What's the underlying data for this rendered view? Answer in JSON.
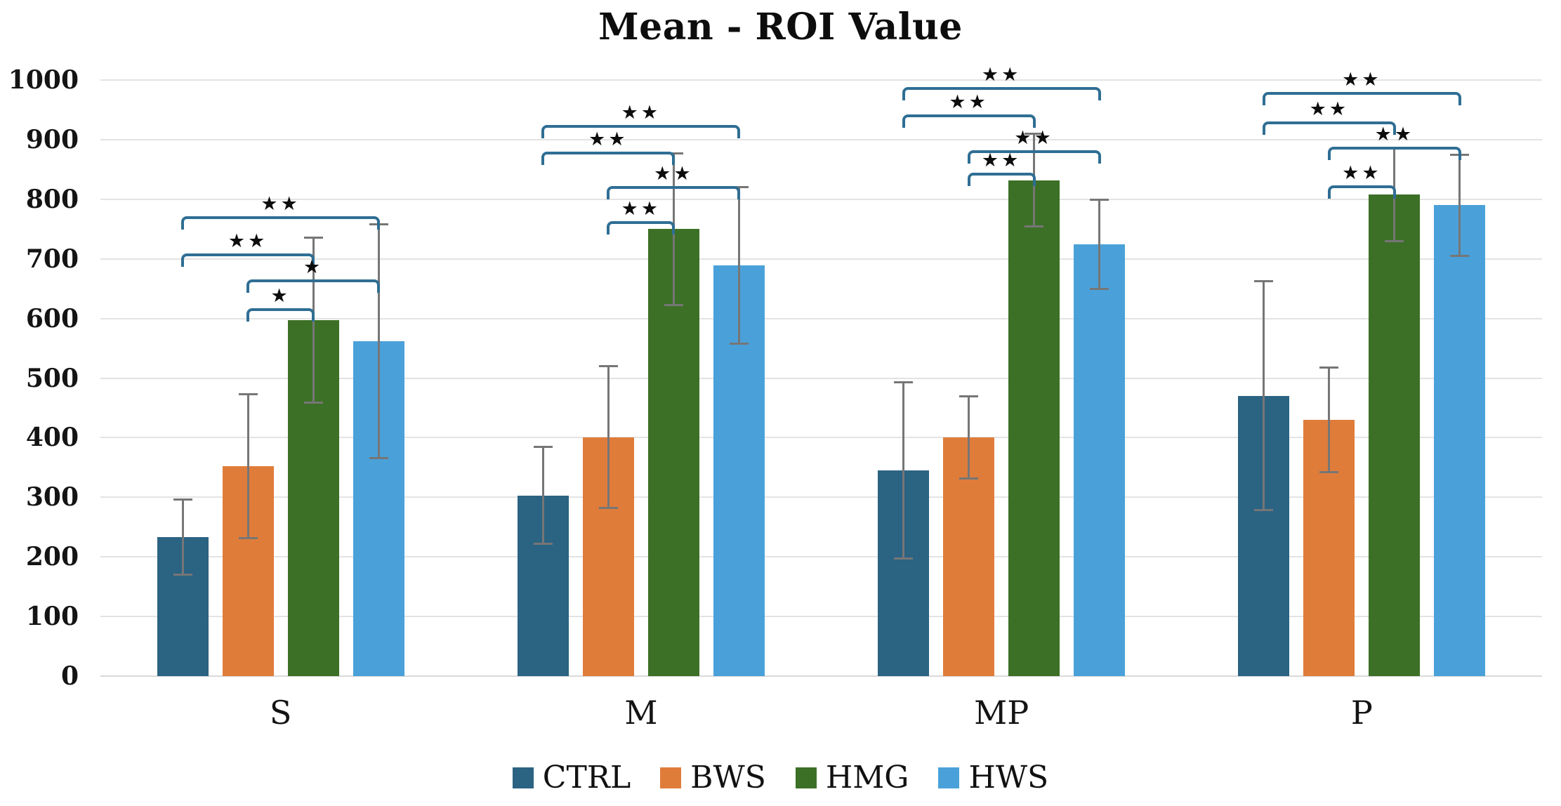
{
  "title": "Mean - ROI Value",
  "chart_data": {
    "type": "bar",
    "title": "Mean - ROI Value",
    "categories": [
      "S",
      "M",
      "MP",
      "P"
    ],
    "series": [
      {
        "name": "CTRL",
        "color": "#2b6383",
        "values": [
          233,
          303,
          345,
          470
        ],
        "errors": [
          63,
          81,
          148,
          192
        ]
      },
      {
        "name": "BWS",
        "color": "#e07c3a",
        "values": [
          352,
          401,
          400,
          430
        ],
        "errors": [
          121,
          119,
          69,
          88
        ]
      },
      {
        "name": "HMG",
        "color": "#3c7026",
        "values": [
          597,
          750,
          832,
          808
        ],
        "errors": [
          138,
          127,
          78,
          78
        ]
      },
      {
        "name": "HWS",
        "color": "#4aa1d9",
        "values": [
          562,
          689,
          724,
          790
        ],
        "errors": [
          196,
          131,
          75,
          85
        ]
      }
    ],
    "ylim": [
      0,
      1000
    ],
    "ytick_step": 100,
    "ytick_labels": [
      "0",
      "100",
      "200",
      "300",
      "400",
      "500",
      "600",
      "700",
      "800",
      "900",
      "1000"
    ],
    "grid": true,
    "legend_position": "bottom",
    "legend": [
      "CTRL",
      "BWS",
      "HMG",
      "HWS"
    ],
    "significance_brackets": [
      {
        "category": "S",
        "from": "CTRL",
        "to": "HWS",
        "y": 772,
        "label": "**"
      },
      {
        "category": "S",
        "from": "CTRL",
        "to": "HMG",
        "y": 709,
        "label": "**"
      },
      {
        "category": "S",
        "from": "BWS",
        "to": "HWS",
        "y": 666,
        "label": "*"
      },
      {
        "category": "S",
        "from": "BWS",
        "to": "HMG",
        "y": 617,
        "label": "*"
      },
      {
        "category": "M",
        "from": "CTRL",
        "to": "HWS",
        "y": 925,
        "label": "**"
      },
      {
        "category": "M",
        "from": "CTRL",
        "to": "HMG",
        "y": 880,
        "label": "**"
      },
      {
        "category": "M",
        "from": "BWS",
        "to": "HWS",
        "y": 822,
        "label": "**"
      },
      {
        "category": "M",
        "from": "BWS",
        "to": "HMG",
        "y": 763,
        "label": "**"
      },
      {
        "category": "MP",
        "from": "CTRL",
        "to": "HWS",
        "y": 988,
        "label": "**"
      },
      {
        "category": "MP",
        "from": "CTRL",
        "to": "HMG",
        "y": 942,
        "label": "**"
      },
      {
        "category": "MP",
        "from": "BWS",
        "to": "HWS",
        "y": 882,
        "label": "**"
      },
      {
        "category": "MP",
        "from": "BWS",
        "to": "HMG",
        "y": 845,
        "label": "**"
      },
      {
        "category": "P",
        "from": "CTRL",
        "to": "HWS",
        "y": 980,
        "label": "**"
      },
      {
        "category": "P",
        "from": "CTRL",
        "to": "HMG",
        "y": 930,
        "label": "**"
      },
      {
        "category": "P",
        "from": "BWS",
        "to": "HWS",
        "y": 888,
        "label": "**"
      },
      {
        "category": "P",
        "from": "BWS",
        "to": "HMG",
        "y": 823,
        "label": "**"
      }
    ],
    "colors": {
      "bracket": "#2f6e94",
      "error_bar": "#767676",
      "gridline": "#e3e3e3",
      "baseline": "#d9d9d9",
      "text": "#111111"
    }
  }
}
